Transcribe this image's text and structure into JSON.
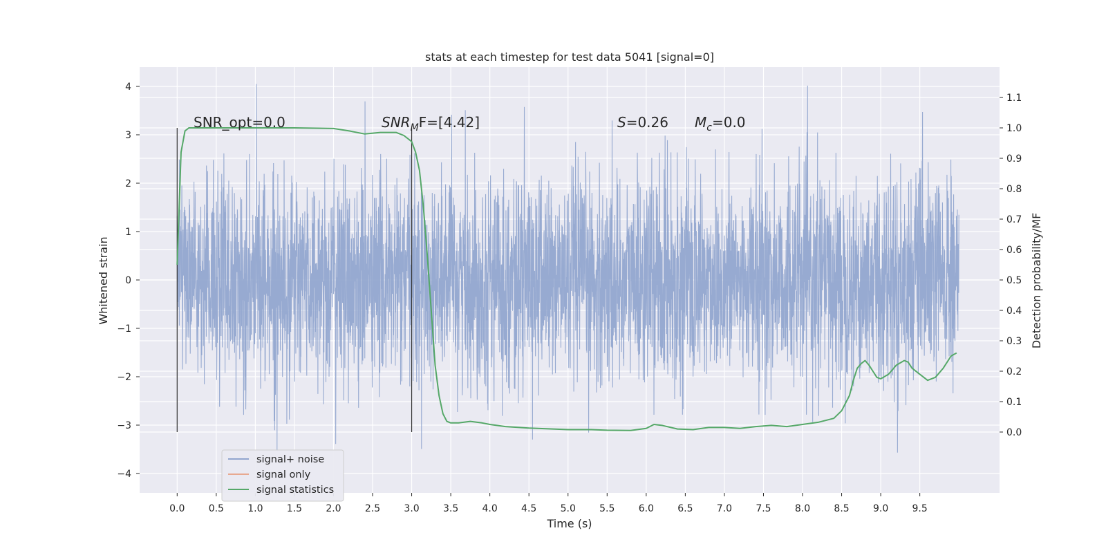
{
  "chart_data": {
    "type": "line",
    "title": "stats at each timestep for test data 5041 [signal=0]",
    "xlabel": "Time (s)",
    "ylabel": "Whitened strain",
    "ylabel_right": "Detection probability/MF",
    "x_ticks": [
      "0.0",
      "0.5",
      "1.0",
      "1.5",
      "2.0",
      "2.5",
      "3.0",
      "3.5",
      "4.0",
      "4.5",
      "5.0",
      "5.5",
      "6.0",
      "6.5",
      "7.0",
      "7.5",
      "8.0",
      "8.5",
      "9.0",
      "9.5"
    ],
    "y_ticks_left": [
      "4",
      "3",
      "2",
      "1",
      "0",
      "−1",
      "−2",
      "−3",
      "−4"
    ],
    "y_ticks_right": [
      "1.1",
      "1.0",
      "0.9",
      "0.8",
      "0.7",
      "0.6",
      "0.5",
      "0.4",
      "0.3",
      "0.2",
      "0.1",
      "0.0"
    ],
    "xlim": [
      -0.48,
      10.52
    ],
    "ylim_left": [
      -4.4,
      4.4
    ],
    "ylim_right": [
      -0.2,
      1.2
    ],
    "grid": true,
    "legend_position": "lower-left",
    "annotations": {
      "snr_opt": "SNR_opt=0.0",
      "snr_mf_main": "SNR",
      "snr_mf_sub": "M",
      "snr_mf_rest": "F=[4.42]",
      "s_var": "S",
      "s_rest": "=0.26",
      "mc_var": "M",
      "mc_sub": "c",
      "mc_rest": "=0.0"
    },
    "vertical_markers": [
      0.0,
      3.0
    ],
    "series": [
      {
        "name": "signal+ noise",
        "axis": "left",
        "color": "#92a6cf",
        "x_range": [
          0.0,
          10.0
        ],
        "description_envelope_amplitude": 2.5
      },
      {
        "name": "signal only",
        "axis": "left",
        "color": "#e8a990",
        "x": [],
        "y": []
      },
      {
        "name": "signal statistics",
        "axis": "right",
        "color": "#55a868",
        "x": [
          0.0,
          0.05,
          0.1,
          0.15,
          0.2,
          0.3,
          0.5,
          1.0,
          1.5,
          2.0,
          2.2,
          2.4,
          2.6,
          2.8,
          2.9,
          3.0,
          3.05,
          3.1,
          3.15,
          3.2,
          3.25,
          3.3,
          3.35,
          3.4,
          3.45,
          3.5,
          3.6,
          3.75,
          3.9,
          4.0,
          4.2,
          4.5,
          5.0,
          5.3,
          5.5,
          5.8,
          6.0,
          6.1,
          6.2,
          6.4,
          6.6,
          6.8,
          7.0,
          7.2,
          7.4,
          7.6,
          7.8,
          8.0,
          8.2,
          8.4,
          8.5,
          8.6,
          8.65,
          8.7,
          8.75,
          8.8,
          8.85,
          8.9,
          8.95,
          9.0,
          9.1,
          9.2,
          9.3,
          9.35,
          9.4,
          9.5,
          9.6,
          9.7,
          9.8,
          9.9,
          9.97
        ],
        "y": [
          0.55,
          0.92,
          0.99,
          1.0,
          1.0,
          1.0,
          1.0,
          1.0,
          1.0,
          0.998,
          0.99,
          0.98,
          0.985,
          0.985,
          0.975,
          0.955,
          0.92,
          0.86,
          0.74,
          0.58,
          0.4,
          0.22,
          0.12,
          0.06,
          0.035,
          0.03,
          0.03,
          0.035,
          0.03,
          0.025,
          0.018,
          0.013,
          0.008,
          0.008,
          0.006,
          0.005,
          0.012,
          0.025,
          0.022,
          0.01,
          0.008,
          0.015,
          0.015,
          0.012,
          0.018,
          0.022,
          0.018,
          0.025,
          0.032,
          0.045,
          0.07,
          0.12,
          0.17,
          0.21,
          0.225,
          0.235,
          0.22,
          0.2,
          0.18,
          0.175,
          0.19,
          0.22,
          0.235,
          0.23,
          0.21,
          0.19,
          0.17,
          0.18,
          0.21,
          0.25,
          0.26
        ]
      }
    ]
  }
}
